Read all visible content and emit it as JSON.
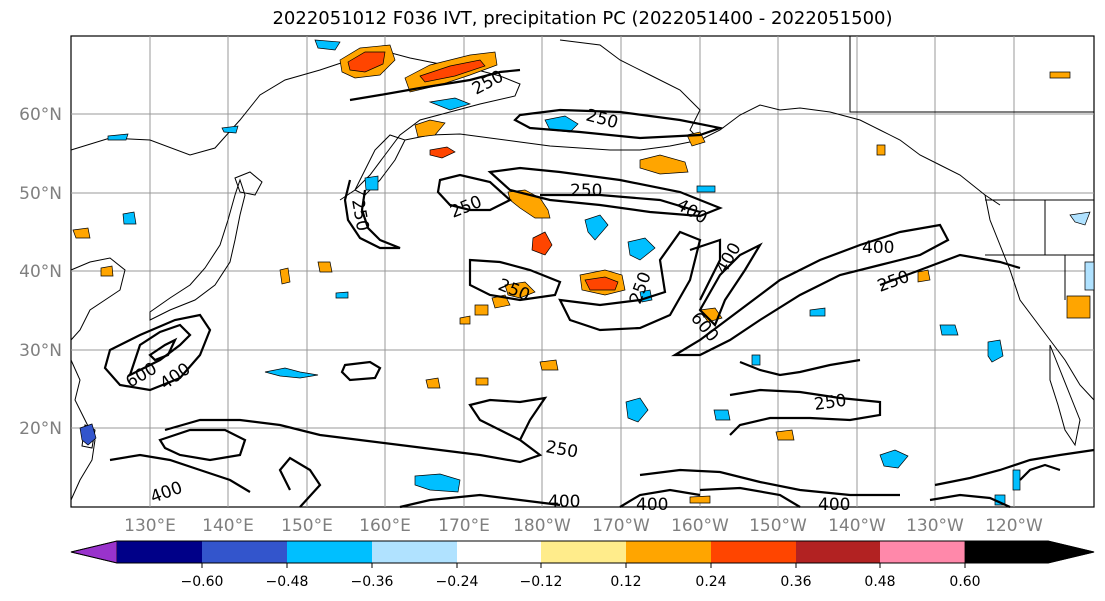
{
  "title": "2022051012 F036 IVT, precipitation PC (2022051400 - 2022051500)",
  "lat_labels": [
    "60°N",
    "50°N",
    "40°N",
    "30°N",
    "20°N"
  ],
  "lon_labels": [
    "130°E",
    "140°E",
    "150°E",
    "160°E",
    "170°E",
    "180°W",
    "170°W",
    "160°W",
    "150°W",
    "140°W",
    "130°W",
    "120°W"
  ],
  "contour_labels": [
    "250",
    "250",
    "250",
    "250",
    "250",
    "250",
    "250",
    "250",
    "250",
    "400",
    "400",
    "400",
    "400",
    "400",
    "600",
    "600",
    "250",
    "400",
    "400",
    "400"
  ],
  "colorbar": {
    "colors": [
      "#9933cc",
      "#000088",
      "#3355cc",
      "#00bfff",
      "#b0e2ff",
      "#ffffff",
      "#ffec8b",
      "#ffa500",
      "#ff4500",
      "#b22222",
      "#ff88aa"
    ],
    "tick_labels": [
      "−0.60",
      "−0.48",
      "−0.36",
      "−0.24",
      "−0.12",
      "0.12",
      "0.24",
      "0.36",
      "0.48",
      "0.60"
    ]
  },
  "colors": {
    "positive_accent": "#ff4500",
    "negative_accent": "#00bfff",
    "grid": "#999999",
    "contour": "#000000"
  }
}
